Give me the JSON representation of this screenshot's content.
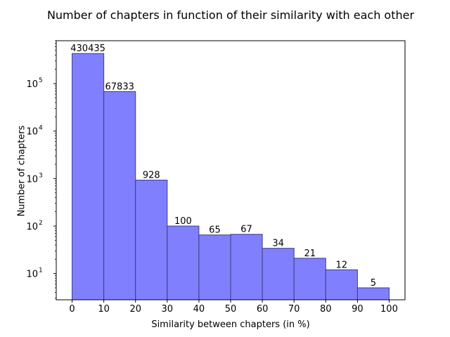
{
  "chart_data": {
    "type": "bar",
    "title": "Number of chapters in function of their similarity with each other",
    "xlabel": "Similarity between chapters (in %)",
    "ylabel": "Number of chapters",
    "yscale": "log",
    "bins": [
      [
        0,
        10
      ],
      [
        10,
        20
      ],
      [
        20,
        30
      ],
      [
        30,
        40
      ],
      [
        40,
        50
      ],
      [
        50,
        60
      ],
      [
        60,
        70
      ],
      [
        70,
        80
      ],
      [
        80,
        90
      ],
      [
        90,
        100
      ]
    ],
    "values": [
      430435,
      67833,
      928,
      100,
      65,
      67,
      34,
      21,
      12,
      5
    ],
    "data_labels": [
      "430435",
      "67833",
      "928",
      "100",
      "65",
      "67",
      "34",
      "21",
      "12",
      "5"
    ],
    "x_ticks": [
      "0",
      "10",
      "20",
      "30",
      "40",
      "50",
      "60",
      "70",
      "80",
      "90",
      "100"
    ],
    "y_ticks": [
      {
        "value": 10,
        "base": "10",
        "exp": "1"
      },
      {
        "value": 100,
        "base": "10",
        "exp": "2"
      },
      {
        "value": 1000,
        "base": "10",
        "exp": "3"
      },
      {
        "value": 10000,
        "base": "10",
        "exp": "4"
      },
      {
        "value": 100000,
        "base": "10",
        "exp": "5"
      }
    ],
    "xlim": [
      -5,
      105
    ],
    "ylim": [
      2.8,
      800000
    ],
    "grid": false,
    "bar_color": "#8080ff",
    "edge_color": "#3d3d80"
  }
}
